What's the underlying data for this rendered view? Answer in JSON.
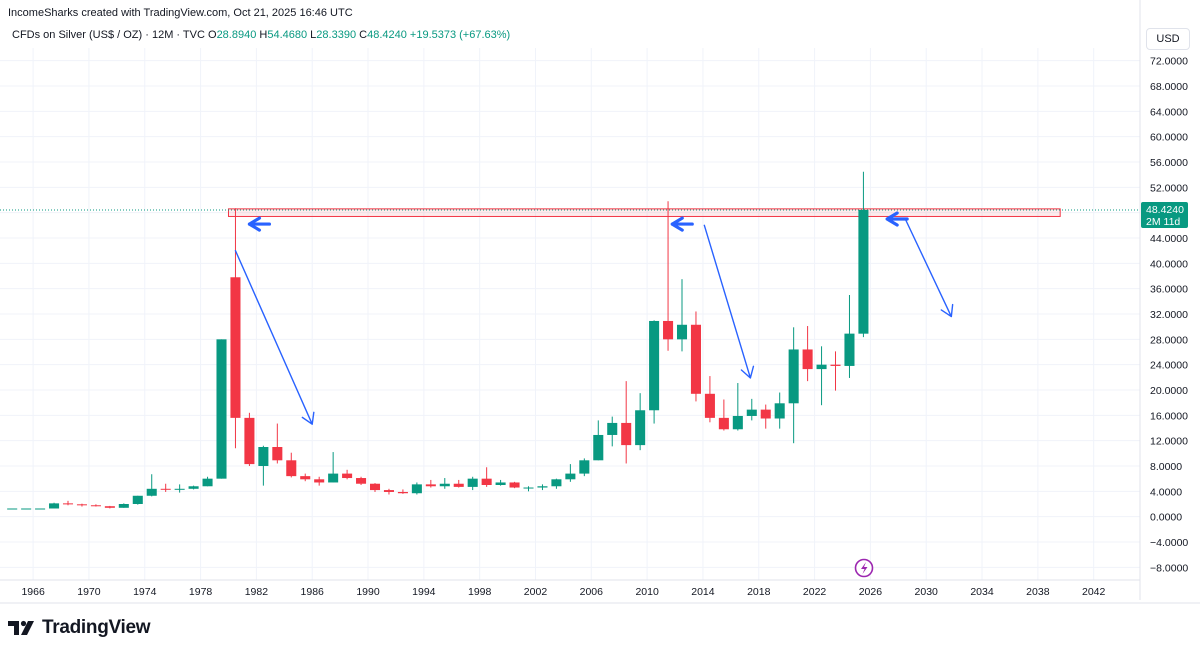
{
  "header": {
    "attribution": "IncomeSharks created with TradingView.com, Oct 21, 2025 16:46 UTC"
  },
  "legend": {
    "symbol": "CFDs on Silver (US$ / OZ) · 12M · TVC",
    "open_label": "O",
    "open": "28.8940",
    "high_label": "H",
    "high": "54.4680",
    "low_label": "L",
    "low": "28.3390",
    "close_label": "C",
    "close": "48.4240",
    "change": "+19.5373 (+67.63%)"
  },
  "currency_button": "USD",
  "price_badge": {
    "price": "48.4240",
    "countdown": "2M 11d"
  },
  "logo": {
    "text": "TradingView"
  },
  "colors": {
    "up": "#089981",
    "down": "#f23645",
    "arrow": "#2962ff",
    "resistance": "#f23645",
    "badge": "#089981"
  },
  "chart_data": {
    "type": "candlestick",
    "interval": "12M",
    "x_ticks": [
      "1966",
      "1970",
      "1974",
      "1978",
      "1982",
      "1986",
      "1990",
      "1994",
      "1998",
      "2002",
      "2006",
      "2010",
      "2014",
      "2018",
      "2022",
      "2026",
      "2030",
      "2034",
      "2038",
      "2042"
    ],
    "y_ticks": [
      "-8.0000",
      "-4.0000",
      "0.0000",
      "4.0000",
      "8.0000",
      "12.0000",
      "16.0000",
      "20.0000",
      "24.0000",
      "28.0000",
      "32.0000",
      "36.0000",
      "40.0000",
      "44.0000",
      "48.0000",
      "52.0000",
      "56.0000",
      "60.0000",
      "64.0000",
      "68.0000",
      "72.0000"
    ],
    "ylim": [
      -10,
      74
    ],
    "xlim": [
      1964.2,
      2043.6
    ],
    "candles": [
      {
        "t": 1964,
        "o": 1.29,
        "h": 1.29,
        "l": 1.29,
        "c": 1.29
      },
      {
        "t": 1965,
        "o": 1.29,
        "h": 1.29,
        "l": 1.29,
        "c": 1.29
      },
      {
        "t": 1966,
        "o": 1.29,
        "h": 1.29,
        "l": 1.29,
        "c": 1.29
      },
      {
        "t": 1967,
        "o": 1.29,
        "h": 2.2,
        "l": 1.29,
        "c": 2.1
      },
      {
        "t": 1968,
        "o": 2.1,
        "h": 2.5,
        "l": 1.8,
        "c": 1.95
      },
      {
        "t": 1969,
        "o": 1.95,
        "h": 2.05,
        "l": 1.6,
        "c": 1.8
      },
      {
        "t": 1970,
        "o": 1.8,
        "h": 1.95,
        "l": 1.6,
        "c": 1.65
      },
      {
        "t": 1971,
        "o": 1.65,
        "h": 1.7,
        "l": 1.3,
        "c": 1.4
      },
      {
        "t": 1972,
        "o": 1.4,
        "h": 2.1,
        "l": 1.4,
        "c": 2.0
      },
      {
        "t": 1973,
        "o": 2.0,
        "h": 3.3,
        "l": 1.9,
        "c": 3.3
      },
      {
        "t": 1974,
        "o": 3.3,
        "h": 6.7,
        "l": 3.2,
        "c": 4.4
      },
      {
        "t": 1975,
        "o": 4.4,
        "h": 5.2,
        "l": 3.9,
        "c": 4.3
      },
      {
        "t": 1976,
        "o": 4.3,
        "h": 5.1,
        "l": 3.8,
        "c": 4.4
      },
      {
        "t": 1977,
        "o": 4.4,
        "h": 4.9,
        "l": 4.3,
        "c": 4.8
      },
      {
        "t": 1978,
        "o": 4.8,
        "h": 6.3,
        "l": 4.8,
        "c": 6.0
      },
      {
        "t": 1979,
        "o": 6.0,
        "h": 28.0,
        "l": 6.0,
        "c": 28.0
      },
      {
        "t": 1980,
        "o": 37.8,
        "h": 48.7,
        "l": 10.8,
        "c": 15.6
      },
      {
        "t": 1981,
        "o": 15.6,
        "h": 16.4,
        "l": 8.0,
        "c": 8.3
      },
      {
        "t": 1982,
        "o": 8.0,
        "h": 11.2,
        "l": 4.9,
        "c": 11.0
      },
      {
        "t": 1983,
        "o": 11.0,
        "h": 14.7,
        "l": 8.4,
        "c": 8.9
      },
      {
        "t": 1984,
        "o": 8.9,
        "h": 10.1,
        "l": 6.2,
        "c": 6.4
      },
      {
        "t": 1985,
        "o": 6.4,
        "h": 6.8,
        "l": 5.6,
        "c": 5.9
      },
      {
        "t": 1986,
        "o": 5.9,
        "h": 6.3,
        "l": 4.9,
        "c": 5.4
      },
      {
        "t": 1987,
        "o": 5.4,
        "h": 10.2,
        "l": 5.4,
        "c": 6.8
      },
      {
        "t": 1988,
        "o": 6.8,
        "h": 7.4,
        "l": 5.9,
        "c": 6.1
      },
      {
        "t": 1989,
        "o": 6.1,
        "h": 6.3,
        "l": 5.0,
        "c": 5.2
      },
      {
        "t": 1990,
        "o": 5.2,
        "h": 5.3,
        "l": 3.9,
        "c": 4.2
      },
      {
        "t": 1991,
        "o": 4.2,
        "h": 4.4,
        "l": 3.5,
        "c": 3.9
      },
      {
        "t": 1992,
        "o": 3.9,
        "h": 4.3,
        "l": 3.6,
        "c": 3.7
      },
      {
        "t": 1993,
        "o": 3.7,
        "h": 5.4,
        "l": 3.5,
        "c": 5.1
      },
      {
        "t": 1994,
        "o": 5.1,
        "h": 5.8,
        "l": 4.6,
        "c": 4.8
      },
      {
        "t": 1995,
        "o": 4.8,
        "h": 6.1,
        "l": 4.4,
        "c": 5.2
      },
      {
        "t": 1996,
        "o": 5.2,
        "h": 5.8,
        "l": 4.6,
        "c": 4.7
      },
      {
        "t": 1997,
        "o": 4.7,
        "h": 6.3,
        "l": 4.2,
        "c": 6.0
      },
      {
        "t": 1998,
        "o": 6.0,
        "h": 7.8,
        "l": 4.7,
        "c": 5.0
      },
      {
        "t": 1999,
        "o": 5.0,
        "h": 5.8,
        "l": 4.9,
        "c": 5.4
      },
      {
        "t": 2000,
        "o": 5.4,
        "h": 5.5,
        "l": 4.5,
        "c": 4.6
      },
      {
        "t": 2001,
        "o": 4.6,
        "h": 4.8,
        "l": 4.0,
        "c": 4.6
      },
      {
        "t": 2002,
        "o": 4.6,
        "h": 5.1,
        "l": 4.2,
        "c": 4.8
      },
      {
        "t": 2003,
        "o": 4.8,
        "h": 6.0,
        "l": 4.4,
        "c": 5.9
      },
      {
        "t": 2004,
        "o": 5.9,
        "h": 8.3,
        "l": 5.5,
        "c": 6.8
      },
      {
        "t": 2005,
        "o": 6.8,
        "h": 9.2,
        "l": 6.4,
        "c": 8.9
      },
      {
        "t": 2006,
        "o": 8.9,
        "h": 15.2,
        "l": 8.9,
        "c": 12.9
      },
      {
        "t": 2007,
        "o": 12.9,
        "h": 15.8,
        "l": 11.1,
        "c": 14.8
      },
      {
        "t": 2008,
        "o": 14.8,
        "h": 21.4,
        "l": 8.4,
        "c": 11.3
      },
      {
        "t": 2009,
        "o": 11.3,
        "h": 19.5,
        "l": 10.5,
        "c": 16.8
      },
      {
        "t": 2010,
        "o": 16.8,
        "h": 31.0,
        "l": 14.7,
        "c": 30.9
      },
      {
        "t": 2011,
        "o": 30.9,
        "h": 49.8,
        "l": 26.2,
        "c": 28.0
      },
      {
        "t": 2012,
        "o": 28.0,
        "h": 37.5,
        "l": 26.1,
        "c": 30.3
      },
      {
        "t": 2013,
        "o": 30.3,
        "h": 32.4,
        "l": 18.2,
        "c": 19.4
      },
      {
        "t": 2014,
        "o": 19.4,
        "h": 22.2,
        "l": 14.9,
        "c": 15.6
      },
      {
        "t": 2015,
        "o": 15.6,
        "h": 18.5,
        "l": 13.6,
        "c": 13.8
      },
      {
        "t": 2016,
        "o": 13.8,
        "h": 21.1,
        "l": 13.6,
        "c": 15.9
      },
      {
        "t": 2017,
        "o": 15.9,
        "h": 18.6,
        "l": 15.2,
        "c": 16.9
      },
      {
        "t": 2018,
        "o": 16.9,
        "h": 17.7,
        "l": 13.9,
        "c": 15.5
      },
      {
        "t": 2019,
        "o": 15.5,
        "h": 19.6,
        "l": 13.9,
        "c": 17.9
      },
      {
        "t": 2020,
        "o": 17.9,
        "h": 29.9,
        "l": 11.6,
        "c": 26.4
      },
      {
        "t": 2021,
        "o": 26.4,
        "h": 30.1,
        "l": 21.4,
        "c": 23.3
      },
      {
        "t": 2022,
        "o": 23.3,
        "h": 26.9,
        "l": 17.6,
        "c": 24.0
      },
      {
        "t": 2023,
        "o": 24.0,
        "h": 26.1,
        "l": 19.9,
        "c": 23.8
      },
      {
        "t": 2024,
        "o": 23.8,
        "h": 35.0,
        "l": 21.9,
        "c": 28.9
      },
      {
        "t": 2025,
        "o": 28.894,
        "h": 54.468,
        "l": 28.339,
        "c": 48.424
      }
    ],
    "resistance_zone": {
      "x_start": 1980,
      "x_end": 2039.6,
      "y_low": 47.4,
      "y_high": 48.6
    },
    "arrows": [
      {
        "kind": "left",
        "x": 1981.5,
        "y": 46.2
      },
      {
        "kind": "left",
        "x": 2011.8,
        "y": 46.2
      },
      {
        "kind": "left",
        "x": 2027.2,
        "y": 47.0
      },
      {
        "kind": "line",
        "x1": 1980.5,
        "y1": 42.0,
        "x2": 1986.0,
        "y2": 14.6
      },
      {
        "kind": "line",
        "x1": 2014.1,
        "y1": 46.0,
        "x2": 2017.4,
        "y2": 21.9
      },
      {
        "kind": "line",
        "x1": 2028.5,
        "y1": 47.0,
        "x2": 2031.8,
        "y2": 31.6
      }
    ]
  }
}
